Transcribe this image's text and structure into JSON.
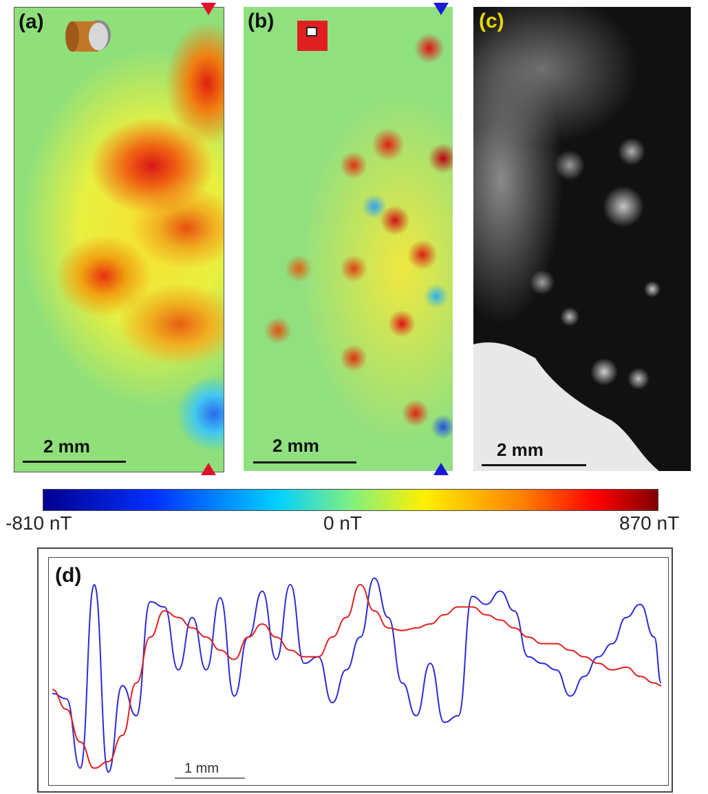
{
  "panels": {
    "a": {
      "label": "(a)",
      "scale": "2 mm"
    },
    "b": {
      "label": "(b)",
      "scale": "2 mm"
    },
    "c": {
      "label": "(c)",
      "scale": "2 mm"
    },
    "d": {
      "label": "(d)",
      "scale": "1 mm"
    }
  },
  "colorbar": {
    "min_label": "-810 nT",
    "mid_label": "0 nT",
    "max_label": "870 nT",
    "min": -810,
    "max": 870
  },
  "icons": {
    "a": "cylinder-sensor-icon",
    "b": "square-sensor-icon"
  },
  "colors": {
    "blue_profile": "#2b2bd6",
    "red_profile": "#e02020",
    "marker_a": "#e0102a",
    "marker_b": "#1a1ad6"
  },
  "chart_data": {
    "type": "line",
    "title": "",
    "xlabel": "",
    "ylabel": "",
    "series": [
      {
        "x": [
          0,
          20,
          40,
          60,
          80,
          100,
          120,
          140,
          160,
          180,
          200,
          220,
          240,
          260,
          280,
          300,
          320,
          340,
          360,
          380,
          400,
          420,
          440,
          460,
          480,
          500,
          520,
          540,
          560,
          580,
          600,
          620,
          640,
          660,
          680,
          700,
          720,
          740,
          760,
          780,
          800,
          820,
          840,
          860,
          870
        ],
        "values": [
          0.12,
          0.08,
          -0.45,
          0.95,
          -0.48,
          0.18,
          -0.05,
          0.82,
          0.78,
          0.3,
          0.7,
          0.3,
          0.85,
          0.1,
          0.55,
          0.9,
          0.38,
          0.95,
          0.35,
          0.4,
          0.05,
          0.3,
          0.55,
          1.0,
          0.7,
          0.2,
          -0.05,
          0.35,
          -0.1,
          -0.05,
          0.86,
          0.8,
          0.9,
          0.75,
          0.4,
          0.35,
          0.3,
          0.1,
          0.25,
          0.4,
          0.5,
          0.7,
          0.8,
          0.55,
          0.2
        ]
      },
      {
        "x": [
          0,
          20,
          40,
          60,
          80,
          100,
          120,
          140,
          160,
          180,
          200,
          220,
          240,
          260,
          280,
          300,
          320,
          340,
          360,
          380,
          400,
          420,
          440,
          460,
          480,
          500,
          520,
          540,
          560,
          580,
          600,
          620,
          640,
          660,
          680,
          700,
          720,
          740,
          760,
          780,
          800,
          820,
          840,
          860,
          870
        ],
        "values": [
          0.15,
          0.0,
          -0.25,
          -0.45,
          -0.4,
          -0.2,
          0.2,
          0.55,
          0.75,
          0.7,
          0.62,
          0.55,
          0.45,
          0.38,
          0.55,
          0.65,
          0.55,
          0.45,
          0.4,
          0.4,
          0.55,
          0.7,
          0.95,
          0.75,
          0.62,
          0.6,
          0.62,
          0.65,
          0.72,
          0.78,
          0.78,
          0.72,
          0.68,
          0.62,
          0.55,
          0.5,
          0.5,
          0.45,
          0.4,
          0.35,
          0.3,
          0.32,
          0.25,
          0.2,
          0.18
        ]
      }
    ]
  }
}
